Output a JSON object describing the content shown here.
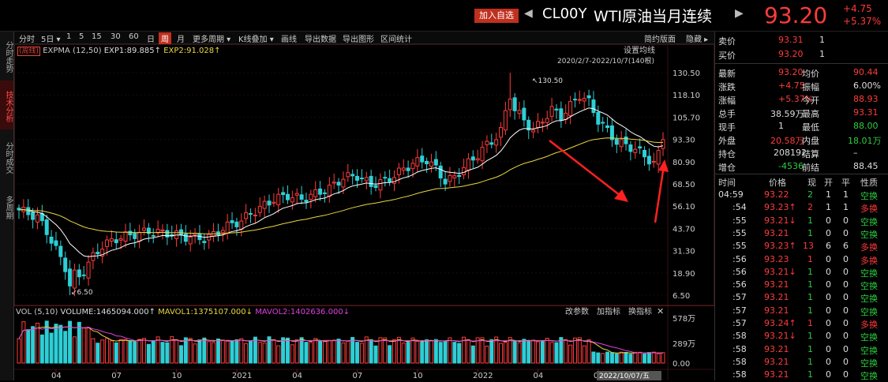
{
  "header": {
    "add_favorite": "加入自选",
    "nav_prev": "◀",
    "nav_next": "▶",
    "symbol_code": "CL00Y",
    "symbol_name": "WTI原油当月连续",
    "price": "93.20",
    "change": "+4.75",
    "change_pct": "+5.37%"
  },
  "left_tabs": [
    {
      "label": "分时走势",
      "active": false
    },
    {
      "label": "技术分析",
      "active": true
    },
    {
      "label": "分时成交",
      "active": false
    },
    {
      "label": "多周期",
      "active": false
    }
  ],
  "toolbar": {
    "items": [
      "分时",
      "5日 ▾",
      "1",
      "5",
      "15",
      "30",
      "60",
      "日",
      "周",
      "月",
      "更多周期 ▾",
      "K线叠加 ▾",
      "画线",
      "导出数据",
      "导出图形",
      "区间统计"
    ],
    "active": "周",
    "right_items": [
      "简约版面",
      "隐藏 ▸"
    ]
  },
  "main_chart": {
    "indicator_tag": "(周线)",
    "indicator_name": "EXPMA (12,50)",
    "exp1": "EXP1:89.885↑",
    "exp2": "EXP2:91.028↑",
    "settings_label": "设置均线",
    "range_label": "2020/2/7-2022/10/7(140根)",
    "high_annot": "130.50",
    "low_annot": "6.50",
    "y_ticks": [
      "130.50",
      "118.10",
      "105.70",
      "93.30",
      "80.90",
      "68.50",
      "56.10",
      "43.70",
      "31.30",
      "18.90",
      "6.50"
    ]
  },
  "vol_chart": {
    "label": "VOL (5,10)",
    "volume": "VOLUME:1465094.000↑",
    "mavol1": "MAVOL1:1375107.000↓",
    "mavol2": "MAVOL2:1402636.000↓",
    "buttons": [
      "改参数",
      "加指标",
      "换指标"
    ],
    "close": "✕",
    "y_ticks": [
      "578万",
      "289万",
      "0.00"
    ]
  },
  "x_axis": [
    "04",
    "07",
    "10",
    "2021",
    "04",
    "07",
    "10",
    "2022",
    "04",
    "07"
  ],
  "date_cursor": "2022/10/07/五",
  "chart_data": {
    "type": "candlestick",
    "x_range": [
      "2020/2/7",
      "2022/10/7"
    ],
    "bars": 140,
    "ylim": [
      6.5,
      130.5
    ],
    "y_high": 130.5,
    "y_low": 6.5,
    "last_close": 93.2,
    "exp1": 89.885,
    "exp2": 91.028,
    "series": [
      {
        "name": "EXP1",
        "color": "#ffffff"
      },
      {
        "name": "EXP2",
        "color": "#e8d840"
      }
    ]
  },
  "quote": {
    "sell_label": "卖价",
    "sell_price": "93.31",
    "sell_vol": "1",
    "buy_label": "买价",
    "buy_price": "93.20",
    "buy_vol": "1",
    "rows": [
      {
        "l1": "最新",
        "v1": "93.20",
        "c1": "red",
        "l2": "均价",
        "v2": "90.44",
        "c2": "red"
      },
      {
        "l1": "涨跌",
        "v1": "+4.75",
        "c1": "red",
        "l2": "振幅",
        "v2": "6.00%",
        "c2": "white"
      },
      {
        "l1": "涨幅",
        "v1": "+5.37%",
        "c1": "red",
        "l2": "今开",
        "v2": "88.93",
        "c2": "red"
      },
      {
        "l1": "总手",
        "v1": "38.59万",
        "c1": "white",
        "l2": "最高",
        "v2": "93.31",
        "c2": "red"
      },
      {
        "l1": "现手",
        "v1": "1",
        "c1": "white",
        "l2": "最低",
        "v2": "88.00",
        "c2": "green"
      },
      {
        "l1": "外盘",
        "v1": "20.58万",
        "c1": "red",
        "l2": "内盘",
        "v2": "18.01万",
        "c2": "green"
      },
      {
        "l1": "持仓",
        "v1": "208192",
        "c1": "white",
        "l2": "结算",
        "v2": "–",
        "c2": "white"
      },
      {
        "l1": "增仓",
        "v1": "-4536",
        "c1": "green",
        "l2": "前结",
        "v2": "88.45",
        "c2": "white"
      }
    ]
  },
  "ticks": {
    "headers": [
      "时间",
      "价格",
      "现",
      "开",
      "平",
      "性质"
    ],
    "rows": [
      {
        "time": "04:59",
        "price": "93.22",
        "pc": "red",
        "now": "2",
        "nc": "green",
        "open": "1",
        "close": "1",
        "type": "空换",
        "tc": "green"
      },
      {
        "time": ":54",
        "price": "93.23↑",
        "pc": "red",
        "now": "2",
        "nc": "red",
        "open": "1",
        "close": "1",
        "type": "多换",
        "tc": "red"
      },
      {
        "time": ":55",
        "price": "93.21↓",
        "pc": "red",
        "now": "1",
        "nc": "green",
        "open": "0",
        "close": "0",
        "type": "空换",
        "tc": "green"
      },
      {
        "time": ":55",
        "price": "93.21",
        "pc": "red",
        "now": "1",
        "nc": "green",
        "open": "0",
        "close": "0",
        "type": "空换",
        "tc": "green"
      },
      {
        "time": ":55",
        "price": "93.23↑",
        "pc": "red",
        "now": "13",
        "nc": "red",
        "open": "6",
        "close": "6",
        "type": "多换",
        "tc": "red"
      },
      {
        "time": ":56",
        "price": "93.23",
        "pc": "red",
        "now": "1",
        "nc": "red",
        "open": "0",
        "close": "0",
        "type": "多换",
        "tc": "red"
      },
      {
        "time": ":56",
        "price": "93.21↓",
        "pc": "red",
        "now": "1",
        "nc": "green",
        "open": "0",
        "close": "0",
        "type": "空换",
        "tc": "green"
      },
      {
        "time": ":56",
        "price": "93.21",
        "pc": "red",
        "now": "1",
        "nc": "green",
        "open": "0",
        "close": "0",
        "type": "空换",
        "tc": "green"
      },
      {
        "time": ":57",
        "price": "93.21",
        "pc": "red",
        "now": "1",
        "nc": "green",
        "open": "0",
        "close": "0",
        "type": "空换",
        "tc": "green"
      },
      {
        "time": ":57",
        "price": "93.21",
        "pc": "red",
        "now": "1",
        "nc": "green",
        "open": "0",
        "close": "0",
        "type": "空换",
        "tc": "green"
      },
      {
        "time": ":57",
        "price": "93.24↑",
        "pc": "red",
        "now": "1",
        "nc": "red",
        "open": "0",
        "close": "0",
        "type": "多换",
        "tc": "red"
      },
      {
        "time": ":58",
        "price": "93.21↓",
        "pc": "red",
        "now": "1",
        "nc": "green",
        "open": "0",
        "close": "0",
        "type": "空换",
        "tc": "green"
      },
      {
        "time": ":58",
        "price": "93.21",
        "pc": "red",
        "now": "1",
        "nc": "green",
        "open": "0",
        "close": "0",
        "type": "空换",
        "tc": "green"
      },
      {
        "time": ":58",
        "price": "93.21",
        "pc": "red",
        "now": "1",
        "nc": "green",
        "open": "0",
        "close": "0",
        "type": "空换",
        "tc": "green"
      },
      {
        "time": ":58",
        "price": "93.21",
        "pc": "red",
        "now": "1",
        "nc": "green",
        "open": "0",
        "close": "0",
        "type": "空换",
        "tc": "green"
      }
    ]
  },
  "colors": {
    "up": "#ff3b3b",
    "down": "#2ecfd6",
    "exp1": "#ffffff",
    "exp2": "#e8d840",
    "arrow": "#ff2020"
  }
}
